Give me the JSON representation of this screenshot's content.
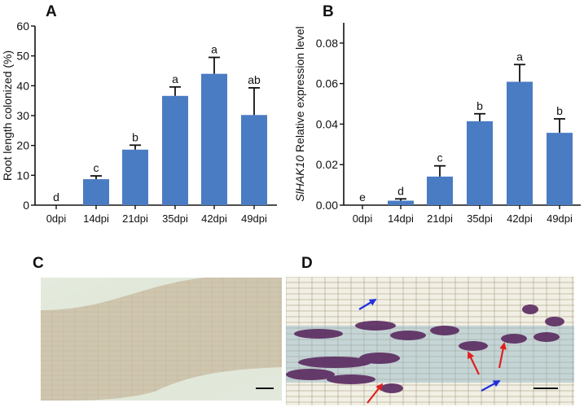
{
  "chart_data": [
    {
      "panel": "A",
      "type": "bar",
      "categories": [
        "0dpi",
        "14dpi",
        "21dpi",
        "35dpi",
        "42dpi",
        "49dpi"
      ],
      "values": [
        0,
        8.7,
        18.6,
        36.6,
        44.0,
        30.2
      ],
      "error_upper": [
        0,
        9.8,
        20.1,
        39.6,
        49.5,
        39.3
      ],
      "significance_letters": [
        "d",
        "c",
        "b",
        "a",
        "a",
        "ab"
      ],
      "ylabel": "Root length colonized (%)",
      "ylim": [
        0,
        60
      ],
      "yticks": [
        "0",
        "10",
        "20",
        "30",
        "40",
        "50",
        "60"
      ],
      "ytick_values": [
        0,
        10,
        20,
        30,
        40,
        50,
        60
      ],
      "grid": false,
      "bar_color": "#4a7cc3"
    },
    {
      "panel": "B",
      "type": "bar",
      "categories": [
        "0dpi",
        "14dpi",
        "21dpi",
        "35dpi",
        "42dpi",
        "49dpi"
      ],
      "values": [
        0,
        0.0022,
        0.0141,
        0.0414,
        0.0609,
        0.0357
      ],
      "error_upper": [
        0,
        0.0031,
        0.0194,
        0.0451,
        0.0694,
        0.0426
      ],
      "significance_letters": [
        "e",
        "d",
        "c",
        "b",
        "a",
        "b"
      ],
      "ylabel_italic": "SlHAK10",
      "ylabel": " Relative expression level",
      "ylim": [
        0,
        0.09
      ],
      "yticks": [
        "0.00",
        "0.02",
        "0.04",
        "0.06",
        "0.08"
      ],
      "ytick_values": [
        0,
        0.02,
        0.04,
        0.06,
        0.08
      ],
      "grid": false,
      "bar_color": "#4a7cc3"
    }
  ],
  "panels": {
    "a": "A",
    "b": "B",
    "c": "C",
    "d": "D"
  },
  "arrow_colors": {
    "arbuscule": "#e02020",
    "hypha": "#2030e0"
  }
}
